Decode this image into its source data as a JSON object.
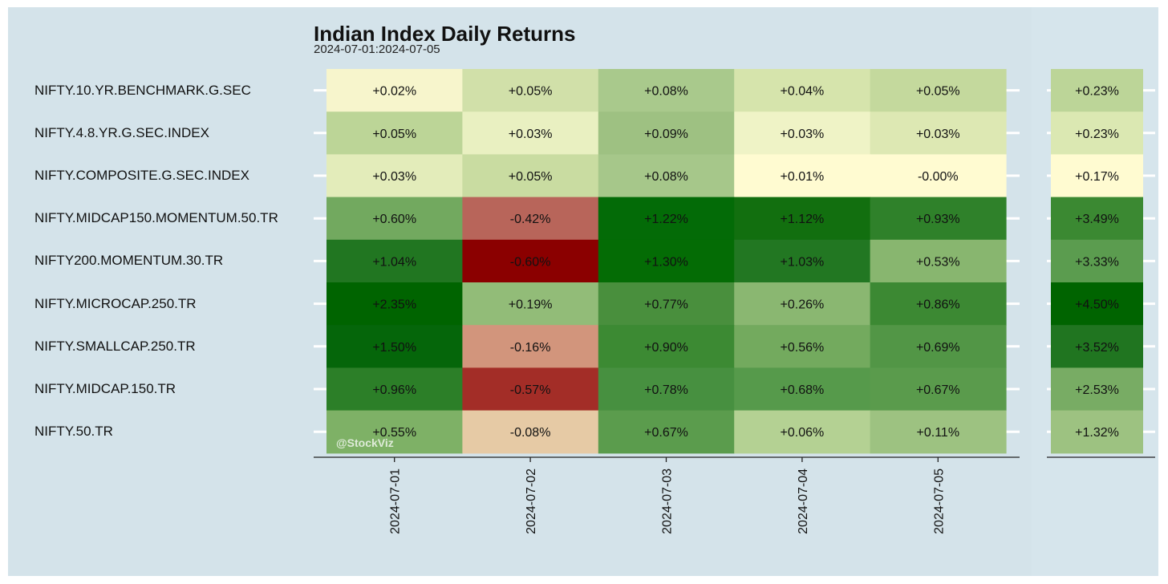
{
  "chart_data": {
    "type": "heatmap",
    "title": "Indian Index Daily Returns",
    "subtitle": "2024-07-01:2024-07-05",
    "watermark": "@StockViz",
    "dates": [
      "2024-07-01",
      "2024-07-02",
      "2024-07-03",
      "2024-07-04",
      "2024-07-05"
    ],
    "rows": [
      {
        "name": "NIFTY.10.YR.BENCHMARK.G.SEC",
        "values": [
          0.02,
          0.05,
          0.08,
          0.04,
          0.05
        ],
        "labels": [
          "+0.02%",
          "+0.05%",
          "+0.08%",
          "+0.04%",
          "+0.05%"
        ],
        "total": 0.23,
        "total_label": "+0.23%"
      },
      {
        "name": "NIFTY.4.8.YR.G.SEC.INDEX",
        "values": [
          0.05,
          0.03,
          0.09,
          0.03,
          0.03
        ],
        "labels": [
          "+0.05%",
          "+0.03%",
          "+0.09%",
          "+0.03%",
          "+0.03%"
        ],
        "total": 0.23,
        "total_label": "+0.23%"
      },
      {
        "name": "NIFTY.COMPOSITE.G.SEC.INDEX",
        "values": [
          0.03,
          0.05,
          0.08,
          0.01,
          -0.0
        ],
        "labels": [
          "+0.03%",
          "+0.05%",
          "+0.08%",
          "+0.01%",
          "-0.00%"
        ],
        "total": 0.17,
        "total_label": "+0.17%"
      },
      {
        "name": "NIFTY.MIDCAP150.MOMENTUM.50.TR",
        "values": [
          0.6,
          -0.42,
          1.22,
          1.12,
          0.93
        ],
        "labels": [
          "+0.60%",
          "-0.42%",
          "+1.22%",
          "+1.12%",
          "+0.93%"
        ],
        "total": 3.49,
        "total_label": "+3.49%"
      },
      {
        "name": "NIFTY200.MOMENTUM.30.TR",
        "values": [
          1.04,
          -0.6,
          1.3,
          1.03,
          0.53
        ],
        "labels": [
          "+1.04%",
          "-0.60%",
          "+1.30%",
          "+1.03%",
          "+0.53%"
        ],
        "total": 3.33,
        "total_label": "+3.33%"
      },
      {
        "name": "NIFTY.MICROCAP.250.TR",
        "values": [
          2.35,
          0.19,
          0.77,
          0.26,
          0.86
        ],
        "labels": [
          "+2.35%",
          "+0.19%",
          "+0.77%",
          "+0.26%",
          "+0.86%"
        ],
        "total": 4.5,
        "total_label": "+4.50%"
      },
      {
        "name": "NIFTY.SMALLCAP.250.TR",
        "values": [
          1.5,
          -0.16,
          0.9,
          0.56,
          0.69
        ],
        "labels": [
          "+1.50%",
          "-0.16%",
          "+0.90%",
          "+0.56%",
          "+0.69%"
        ],
        "total": 3.52,
        "total_label": "+3.52%"
      },
      {
        "name": "NIFTY.MIDCAP.150.TR",
        "values": [
          0.96,
          -0.57,
          0.78,
          0.68,
          0.67
        ],
        "labels": [
          "+0.96%",
          "-0.57%",
          "+0.78%",
          "+0.68%",
          "+0.67%"
        ],
        "total": 2.53,
        "total_label": "+2.53%"
      },
      {
        "name": "NIFTY.50.TR",
        "values": [
          0.55,
          -0.08,
          0.67,
          0.06,
          0.11
        ],
        "labels": [
          "+0.55%",
          "-0.08%",
          "+0.67%",
          "+0.06%",
          "+0.11%"
        ],
        "total": 1.32,
        "total_label": "+1.32%"
      }
    ],
    "colors": {
      "panel_background": "#d4e3ea",
      "cells": [
        [
          "#f7f5cc",
          "#d1e0a9",
          "#a9c98c",
          "#d6e4ac",
          "#c4d99d"
        ],
        [
          "#bcd597",
          "#e9f0c1",
          "#9ec182",
          "#eff3c6",
          "#dde8b3"
        ],
        [
          "#e3ecba",
          "#c9dca1",
          "#a6c78a",
          "#fffbd1",
          "#fffbd1"
        ],
        [
          "#72a95f",
          "#b8655a",
          "#036b07",
          "#126f0f",
          "#2f812a"
        ],
        [
          "#217621",
          "#8b0000",
          "#046c05",
          "#227722",
          "#88b66f"
        ],
        [
          "#006400",
          "#92bc78",
          "#498f3d",
          "#8ab771",
          "#3c8933"
        ],
        [
          "#05660a",
          "#d2957c",
          "#3c8a33",
          "#73aa5e",
          "#529646"
        ],
        [
          "#2c7f28",
          "#a32d27",
          "#479040",
          "#569a4b",
          "#5a9b4c"
        ],
        [
          "#7eb166",
          "#e6caa5",
          "#5b9c4d",
          "#b4d193",
          "#9dc281"
        ]
      ],
      "totals": [
        "#bcd598",
        "#dbe8b2",
        "#fffbd1",
        "#3b8932",
        "#5b9c4f",
        "#006400",
        "#207520",
        "#78ac64",
        "#9dc281"
      ]
    }
  }
}
